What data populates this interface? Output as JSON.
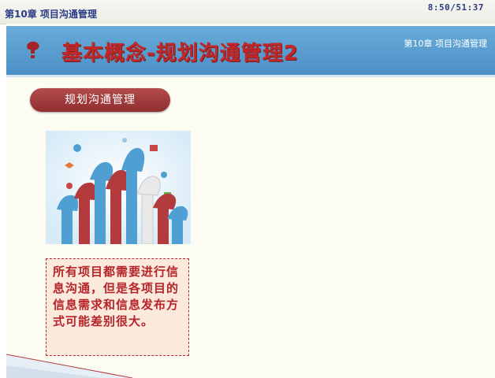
{
  "topbar": {
    "chapter_title": "第10章 项目沟通管理",
    "timer": "8:50/51:37"
  },
  "slide": {
    "title": "基本概念-规划沟通管理2",
    "chapter_label": "第10章 项目沟通管理",
    "section_label": "规划沟通管理",
    "body_text": "所有项目都需要进行信息沟通，但是各项目的信息需求和信息发布方式可能差别很大。"
  },
  "colors": {
    "banner_blue": "#5a9fd2",
    "title_red": "#c0282a",
    "pill_red": "#9e3a3c",
    "slide_bg": "#fdfcf2"
  }
}
